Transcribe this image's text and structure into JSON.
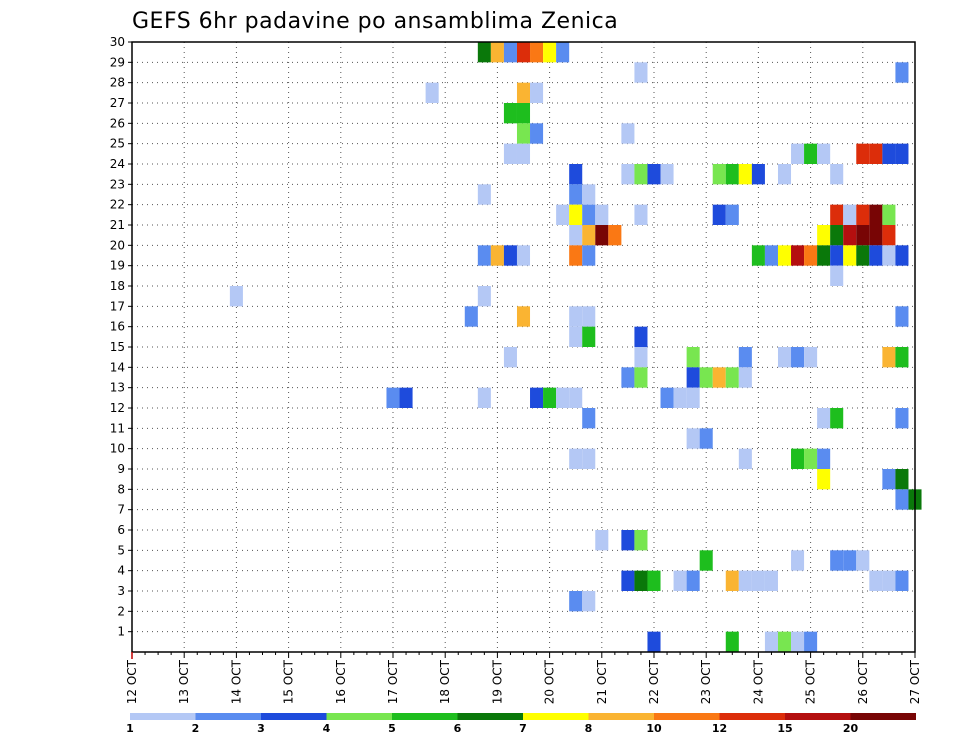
{
  "chart_data": {
    "type": "heatmap",
    "title": "GEFS 6hr padavine po ansamblima Zenica",
    "y_ticks": [
      "1",
      "2",
      "3",
      "4",
      "5",
      "6",
      "7",
      "8",
      "9",
      "10",
      "11",
      "12",
      "13",
      "14",
      "15",
      "16",
      "17",
      "18",
      "19",
      "20",
      "21",
      "22",
      "23",
      "24",
      "25",
      "26",
      "27",
      "28",
      "29",
      "30"
    ],
    "x_ticks": [
      "12 OCT",
      "13 OCT",
      "14 OCT",
      "15 OCT",
      "16 OCT",
      "17 OCT",
      "18 OCT",
      "19 OCT",
      "20 OCT",
      "21 OCT",
      "22 OCT",
      "23 OCT",
      "24 OCT",
      "25 OCT",
      "26 OCT",
      "27 OCT"
    ],
    "x_range": [
      "12 OCT 00Z",
      "27 OCT 00Z"
    ],
    "time_step_hours": 6,
    "y_range": [
      0,
      30
    ],
    "grid": "dotted",
    "colorbar": {
      "labels": [
        "1",
        "2",
        "3",
        "4",
        "5",
        "6",
        "7",
        "8",
        "10",
        "12",
        "15",
        "20"
      ],
      "colors": [
        "#b4c8f5",
        "#5a8cf0",
        "#1e4bdc",
        "#78e650",
        "#1ebe1e",
        "#0a780a",
        "#ffff00",
        "#fab432",
        "#fa7814",
        "#dc2d0a",
        "#b40f0f",
        "#780505"
      ]
    },
    "cells": [
      {
        "m": 30,
        "t": "18 OCT 18Z",
        "c": 6
      },
      {
        "m": 30,
        "t": "19 OCT 00Z",
        "c": 8
      },
      {
        "m": 30,
        "t": "19 OCT 06Z",
        "c": 2
      },
      {
        "m": 30,
        "t": "19 OCT 12Z",
        "c": 10
      },
      {
        "m": 30,
        "t": "19 OCT 18Z",
        "c": 9
      },
      {
        "m": 30,
        "t": "20 OCT 00Z",
        "c": 7
      },
      {
        "m": 30,
        "t": "20 OCT 06Z",
        "c": 2
      },
      {
        "m": 29,
        "t": "21 OCT 18Z",
        "c": 1
      },
      {
        "m": 29,
        "t": "26 OCT 18Z",
        "c": 2
      },
      {
        "m": 28,
        "t": "17 OCT 18Z",
        "c": 1
      },
      {
        "m": 28,
        "t": "19 OCT 12Z",
        "c": 8
      },
      {
        "m": 28,
        "t": "19 OCT 18Z",
        "c": 1
      },
      {
        "m": 27,
        "t": "19 OCT 06Z",
        "c": 5
      },
      {
        "m": 27,
        "t": "19 OCT 12Z",
        "c": 5
      },
      {
        "m": 26,
        "t": "19 OCT 12Z",
        "c": 4
      },
      {
        "m": 26,
        "t": "19 OCT 18Z",
        "c": 2
      },
      {
        "m": 26,
        "t": "21 OCT 12Z",
        "c": 1
      },
      {
        "m": 25,
        "t": "19 OCT 06Z",
        "c": 1
      },
      {
        "m": 25,
        "t": "19 OCT 12Z",
        "c": 1
      },
      {
        "m": 25,
        "t": "24 OCT 18Z",
        "c": 1
      },
      {
        "m": 25,
        "t": "25 OCT 00Z",
        "c": 5
      },
      {
        "m": 25,
        "t": "25 OCT 06Z",
        "c": 1
      },
      {
        "m": 25,
        "t": "26 OCT 00Z",
        "c": 10
      },
      {
        "m": 25,
        "t": "26 OCT 06Z",
        "c": 10
      },
      {
        "m": 25,
        "t": "26 OCT 12Z",
        "c": 3
      },
      {
        "m": 25,
        "t": "26 OCT 18Z",
        "c": 3
      },
      {
        "m": 24,
        "t": "20 OCT 12Z",
        "c": 3
      },
      {
        "m": 24,
        "t": "21 OCT 12Z",
        "c": 1
      },
      {
        "m": 24,
        "t": "21 OCT 18Z",
        "c": 4
      },
      {
        "m": 24,
        "t": "22 OCT 00Z",
        "c": 3
      },
      {
        "m": 24,
        "t": "22 OCT 06Z",
        "c": 1
      },
      {
        "m": 24,
        "t": "23 OCT 06Z",
        "c": 4
      },
      {
        "m": 24,
        "t": "23 OCT 12Z",
        "c": 5
      },
      {
        "m": 24,
        "t": "23 OCT 18Z",
        "c": 7
      },
      {
        "m": 24,
        "t": "24 OCT 00Z",
        "c": 3
      },
      {
        "m": 24,
        "t": "24 OCT 12Z",
        "c": 1
      },
      {
        "m": 24,
        "t": "25 OCT 12Z",
        "c": 1
      },
      {
        "m": 23,
        "t": "18 OCT 18Z",
        "c": 1
      },
      {
        "m": 23,
        "t": "20 OCT 12Z",
        "c": 2
      },
      {
        "m": 23,
        "t": "20 OCT 18Z",
        "c": 1
      },
      {
        "m": 22,
        "t": "20 OCT 06Z",
        "c": 1
      },
      {
        "m": 22,
        "t": "20 OCT 12Z",
        "c": 7
      },
      {
        "m": 22,
        "t": "20 OCT 18Z",
        "c": 2
      },
      {
        "m": 22,
        "t": "21 OCT 00Z",
        "c": 1
      },
      {
        "m": 22,
        "t": "21 OCT 18Z",
        "c": 1
      },
      {
        "m": 22,
        "t": "23 OCT 06Z",
        "c": 3
      },
      {
        "m": 22,
        "t": "23 OCT 12Z",
        "c": 2
      },
      {
        "m": 22,
        "t": "25 OCT 12Z",
        "c": 10
      },
      {
        "m": 22,
        "t": "25 OCT 18Z",
        "c": 1
      },
      {
        "m": 22,
        "t": "26 OCT 00Z",
        "c": 10
      },
      {
        "m": 22,
        "t": "26 OCT 06Z",
        "c": 12
      },
      {
        "m": 22,
        "t": "26 OCT 12Z",
        "c": 4
      },
      {
        "m": 21,
        "t": "20 OCT 12Z",
        "c": 1
      },
      {
        "m": 21,
        "t": "20 OCT 18Z",
        "c": 8
      },
      {
        "m": 21,
        "t": "21 OCT 00Z",
        "c": 12
      },
      {
        "m": 21,
        "t": "21 OCT 06Z",
        "c": 9
      },
      {
        "m": 21,
        "t": "25 OCT 06Z",
        "c": 7
      },
      {
        "m": 21,
        "t": "25 OCT 12Z",
        "c": 6
      },
      {
        "m": 21,
        "t": "25 OCT 18Z",
        "c": 11
      },
      {
        "m": 21,
        "t": "26 OCT 00Z",
        "c": 12
      },
      {
        "m": 21,
        "t": "26 OCT 06Z",
        "c": 12
      },
      {
        "m": 21,
        "t": "26 OCT 12Z",
        "c": 10
      },
      {
        "m": 20,
        "t": "18 OCT 18Z",
        "c": 2
      },
      {
        "m": 20,
        "t": "19 OCT 00Z",
        "c": 8
      },
      {
        "m": 20,
        "t": "19 OCT 06Z",
        "c": 3
      },
      {
        "m": 20,
        "t": "19 OCT 12Z",
        "c": 1
      },
      {
        "m": 20,
        "t": "20 OCT 12Z",
        "c": 9
      },
      {
        "m": 20,
        "t": "20 OCT 18Z",
        "c": 2
      },
      {
        "m": 20,
        "t": "24 OCT 00Z",
        "c": 5
      },
      {
        "m": 20,
        "t": "24 OCT 06Z",
        "c": 2
      },
      {
        "m": 20,
        "t": "24 OCT 12Z",
        "c": 7
      },
      {
        "m": 20,
        "t": "24 OCT 18Z",
        "c": 11
      },
      {
        "m": 20,
        "t": "25 OCT 00Z",
        "c": 9
      },
      {
        "m": 20,
        "t": "25 OCT 06Z",
        "c": 6
      },
      {
        "m": 20,
        "t": "25 OCT 12Z",
        "c": 3
      },
      {
        "m": 20,
        "t": "25 OCT 18Z",
        "c": 7
      },
      {
        "m": 20,
        "t": "26 OCT 00Z",
        "c": 6
      },
      {
        "m": 20,
        "t": "26 OCT 06Z",
        "c": 3
      },
      {
        "m": 20,
        "t": "26 OCT 12Z",
        "c": 1
      },
      {
        "m": 20,
        "t": "26 OCT 18Z",
        "c": 3
      },
      {
        "m": 19,
        "t": "25 OCT 12Z",
        "c": 1
      },
      {
        "m": 18,
        "t": "14 OCT 00Z",
        "c": 1
      },
      {
        "m": 18,
        "t": "18 OCT 18Z",
        "c": 1
      },
      {
        "m": 17,
        "t": "18 OCT 12Z",
        "c": 2
      },
      {
        "m": 17,
        "t": "19 OCT 12Z",
        "c": 8
      },
      {
        "m": 17,
        "t": "20 OCT 12Z",
        "c": 1
      },
      {
        "m": 17,
        "t": "20 OCT 18Z",
        "c": 1
      },
      {
        "m": 17,
        "t": "26 OCT 18Z",
        "c": 2
      },
      {
        "m": 16,
        "t": "20 OCT 12Z",
        "c": 1
      },
      {
        "m": 16,
        "t": "20 OCT 18Z",
        "c": 5
      },
      {
        "m": 16,
        "t": "21 OCT 18Z",
        "c": 3
      },
      {
        "m": 15,
        "t": "19 OCT 06Z",
        "c": 1
      },
      {
        "m": 15,
        "t": "21 OCT 18Z",
        "c": 1
      },
      {
        "m": 15,
        "t": "22 OCT 18Z",
        "c": 4
      },
      {
        "m": 15,
        "t": "23 OCT 18Z",
        "c": 2
      },
      {
        "m": 15,
        "t": "24 OCT 12Z",
        "c": 1
      },
      {
        "m": 15,
        "t": "24 OCT 18Z",
        "c": 2
      },
      {
        "m": 15,
        "t": "25 OCT 00Z",
        "c": 1
      },
      {
        "m": 15,
        "t": "26 OCT 12Z",
        "c": 8
      },
      {
        "m": 15,
        "t": "26 OCT 18Z",
        "c": 5
      },
      {
        "m": 14,
        "t": "21 OCT 12Z",
        "c": 2
      },
      {
        "m": 14,
        "t": "21 OCT 18Z",
        "c": 4
      },
      {
        "m": 14,
        "t": "22 OCT 18Z",
        "c": 3
      },
      {
        "m": 14,
        "t": "23 OCT 00Z",
        "c": 4
      },
      {
        "m": 14,
        "t": "23 OCT 06Z",
        "c": 8
      },
      {
        "m": 14,
        "t": "23 OCT 12Z",
        "c": 4
      },
      {
        "m": 14,
        "t": "23 OCT 18Z",
        "c": 1
      },
      {
        "m": 13,
        "t": "17 OCT 00Z",
        "c": 2
      },
      {
        "m": 13,
        "t": "17 OCT 06Z",
        "c": 3
      },
      {
        "m": 13,
        "t": "18 OCT 18Z",
        "c": 1
      },
      {
        "m": 13,
        "t": "19 OCT 18Z",
        "c": 3
      },
      {
        "m": 13,
        "t": "20 OCT 00Z",
        "c": 5
      },
      {
        "m": 13,
        "t": "20 OCT 06Z",
        "c": 1
      },
      {
        "m": 13,
        "t": "20 OCT 12Z",
        "c": 1
      },
      {
        "m": 13,
        "t": "22 OCT 06Z",
        "c": 2
      },
      {
        "m": 13,
        "t": "22 OCT 12Z",
        "c": 1
      },
      {
        "m": 13,
        "t": "22 OCT 18Z",
        "c": 1
      },
      {
        "m": 12,
        "t": "20 OCT 18Z",
        "c": 2
      },
      {
        "m": 12,
        "t": "25 OCT 06Z",
        "c": 1
      },
      {
        "m": 12,
        "t": "25 OCT 12Z",
        "c": 5
      },
      {
        "m": 12,
        "t": "26 OCT 18Z",
        "c": 2
      },
      {
        "m": 11,
        "t": "22 OCT 18Z",
        "c": 1
      },
      {
        "m": 11,
        "t": "23 OCT 00Z",
        "c": 2
      },
      {
        "m": 10,
        "t": "20 OCT 12Z",
        "c": 1
      },
      {
        "m": 10,
        "t": "20 OCT 18Z",
        "c": 1
      },
      {
        "m": 10,
        "t": "23 OCT 18Z",
        "c": 1
      },
      {
        "m": 10,
        "t": "24 OCT 18Z",
        "c": 5
      },
      {
        "m": 10,
        "t": "25 OCT 00Z",
        "c": 4
      },
      {
        "m": 10,
        "t": "25 OCT 06Z",
        "c": 2
      },
      {
        "m": 9,
        "t": "25 OCT 06Z",
        "c": 7
      },
      {
        "m": 9,
        "t": "26 OCT 12Z",
        "c": 2
      },
      {
        "m": 9,
        "t": "26 OCT 18Z",
        "c": 6
      },
      {
        "m": 8,
        "t": "26 OCT 18Z",
        "c": 2
      },
      {
        "m": 8,
        "t": "27 OCT 00Z",
        "c": 6
      },
      {
        "m": 6,
        "t": "21 OCT 00Z",
        "c": 1
      },
      {
        "m": 6,
        "t": "21 OCT 12Z",
        "c": 3
      },
      {
        "m": 6,
        "t": "21 OCT 18Z",
        "c": 4
      },
      {
        "m": 5,
        "t": "23 OCT 00Z",
        "c": 5
      },
      {
        "m": 5,
        "t": "24 OCT 18Z",
        "c": 1
      },
      {
        "m": 5,
        "t": "25 OCT 12Z",
        "c": 2
      },
      {
        "m": 5,
        "t": "25 OCT 18Z",
        "c": 2
      },
      {
        "m": 5,
        "t": "26 OCT 00Z",
        "c": 1
      },
      {
        "m": 4,
        "t": "21 OCT 12Z",
        "c": 3
      },
      {
        "m": 4,
        "t": "21 OCT 18Z",
        "c": 6
      },
      {
        "m": 4,
        "t": "22 OCT 00Z",
        "c": 5
      },
      {
        "m": 4,
        "t": "22 OCT 12Z",
        "c": 1
      },
      {
        "m": 4,
        "t": "22 OCT 18Z",
        "c": 2
      },
      {
        "m": 4,
        "t": "23 OCT 12Z",
        "c": 8
      },
      {
        "m": 4,
        "t": "23 OCT 18Z",
        "c": 1
      },
      {
        "m": 4,
        "t": "24 OCT 00Z",
        "c": 1
      },
      {
        "m": 4,
        "t": "24 OCT 06Z",
        "c": 1
      },
      {
        "m": 4,
        "t": "26 OCT 06Z",
        "c": 1
      },
      {
        "m": 4,
        "t": "26 OCT 12Z",
        "c": 1
      },
      {
        "m": 4,
        "t": "26 OCT 18Z",
        "c": 2
      },
      {
        "m": 3,
        "t": "20 OCT 12Z",
        "c": 2
      },
      {
        "m": 3,
        "t": "20 OCT 18Z",
        "c": 1
      },
      {
        "m": 1,
        "t": "22 OCT 00Z",
        "c": 3
      },
      {
        "m": 1,
        "t": "23 OCT 12Z",
        "c": 5
      },
      {
        "m": 1,
        "t": "24 OCT 06Z",
        "c": 1
      },
      {
        "m": 1,
        "t": "24 OCT 12Z",
        "c": 4
      },
      {
        "m": 1,
        "t": "24 OCT 18Z",
        "c": 1
      },
      {
        "m": 1,
        "t": "25 OCT 00Z",
        "c": 2
      }
    ]
  }
}
